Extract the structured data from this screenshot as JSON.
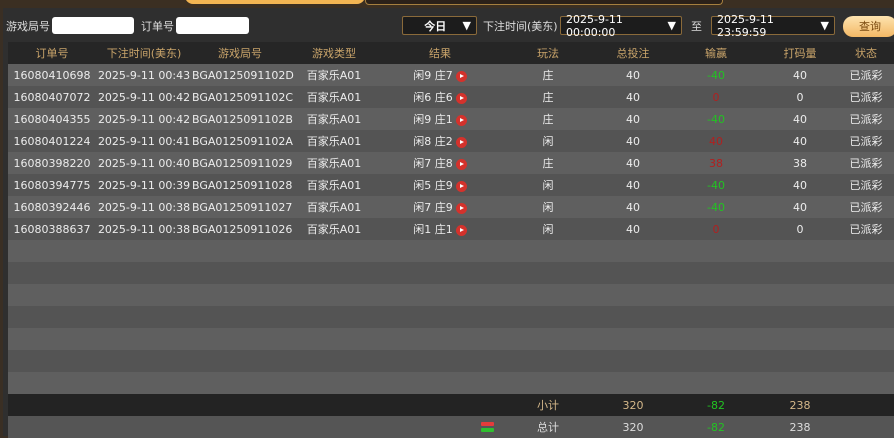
{
  "filters": {
    "round_label": "游戏局号",
    "round_value": "",
    "order_label": "订单号",
    "order_value": "",
    "period": "今日",
    "time_label": "下注时间(美东)",
    "start": "2025-9-11 00:00:00",
    "to": "至",
    "end": "2025-9-11 23:59:59",
    "query": "查询"
  },
  "columns": [
    "订单号",
    "下注时间(美东)",
    "游戏局号",
    "游戏类型",
    "结果",
    "玩法",
    "总投注",
    "输赢",
    "打码量",
    "状态"
  ],
  "rows": [
    {
      "order": "16080410698",
      "time": "2025-9-11 00:43",
      "round": "BGA0125091102D",
      "game": "百家乐A01",
      "result": "闲9 庄7",
      "bet": "庄",
      "total": "40",
      "winloss": "-40",
      "valid": "40",
      "status": "已派彩"
    },
    {
      "order": "16080407072",
      "time": "2025-9-11 00:42",
      "round": "BGA0125091102C",
      "game": "百家乐A01",
      "result": "闲6 庄6",
      "bet": "庄",
      "total": "40",
      "winloss": "0",
      "valid": "0",
      "status": "已派彩"
    },
    {
      "order": "16080404355",
      "time": "2025-9-11 00:42",
      "round": "BGA0125091102B",
      "game": "百家乐A01",
      "result": "闲9 庄1",
      "bet": "庄",
      "total": "40",
      "winloss": "-40",
      "valid": "40",
      "status": "已派彩"
    },
    {
      "order": "16080401224",
      "time": "2025-9-11 00:41",
      "round": "BGA0125091102A",
      "game": "百家乐A01",
      "result": "闲8 庄2",
      "bet": "闲",
      "total": "40",
      "winloss": "40",
      "valid": "40",
      "status": "已派彩"
    },
    {
      "order": "16080398220",
      "time": "2025-9-11 00:40",
      "round": "BGA01250911029",
      "game": "百家乐A01",
      "result": "闲7 庄8",
      "bet": "庄",
      "total": "40",
      "winloss": "38",
      "valid": "38",
      "status": "已派彩"
    },
    {
      "order": "16080394775",
      "time": "2025-9-11 00:39",
      "round": "BGA01250911028",
      "game": "百家乐A01",
      "result": "闲5 庄9",
      "bet": "闲",
      "total": "40",
      "winloss": "-40",
      "valid": "40",
      "status": "已派彩"
    },
    {
      "order": "16080392446",
      "time": "2025-9-11 00:38",
      "round": "BGA01250911027",
      "game": "百家乐A01",
      "result": "闲7 庄9",
      "bet": "闲",
      "total": "40",
      "winloss": "-40",
      "valid": "40",
      "status": "已派彩"
    },
    {
      "order": "16080388637",
      "time": "2025-9-11 00:38",
      "round": "BGA01250911026",
      "game": "百家乐A01",
      "result": "闲1 庄1",
      "bet": "闲",
      "total": "40",
      "winloss": "0",
      "valid": "0",
      "status": "已派彩"
    }
  ],
  "subtotal": {
    "label": "小计",
    "total": "320",
    "winloss": "-82",
    "valid": "238"
  },
  "grandtotal": {
    "label": "总计",
    "total": "320",
    "winloss": "-82",
    "valid": "238"
  },
  "colors": {
    "win": "#22c322",
    "loss": "#b02020",
    "accent": "#f3b552"
  }
}
